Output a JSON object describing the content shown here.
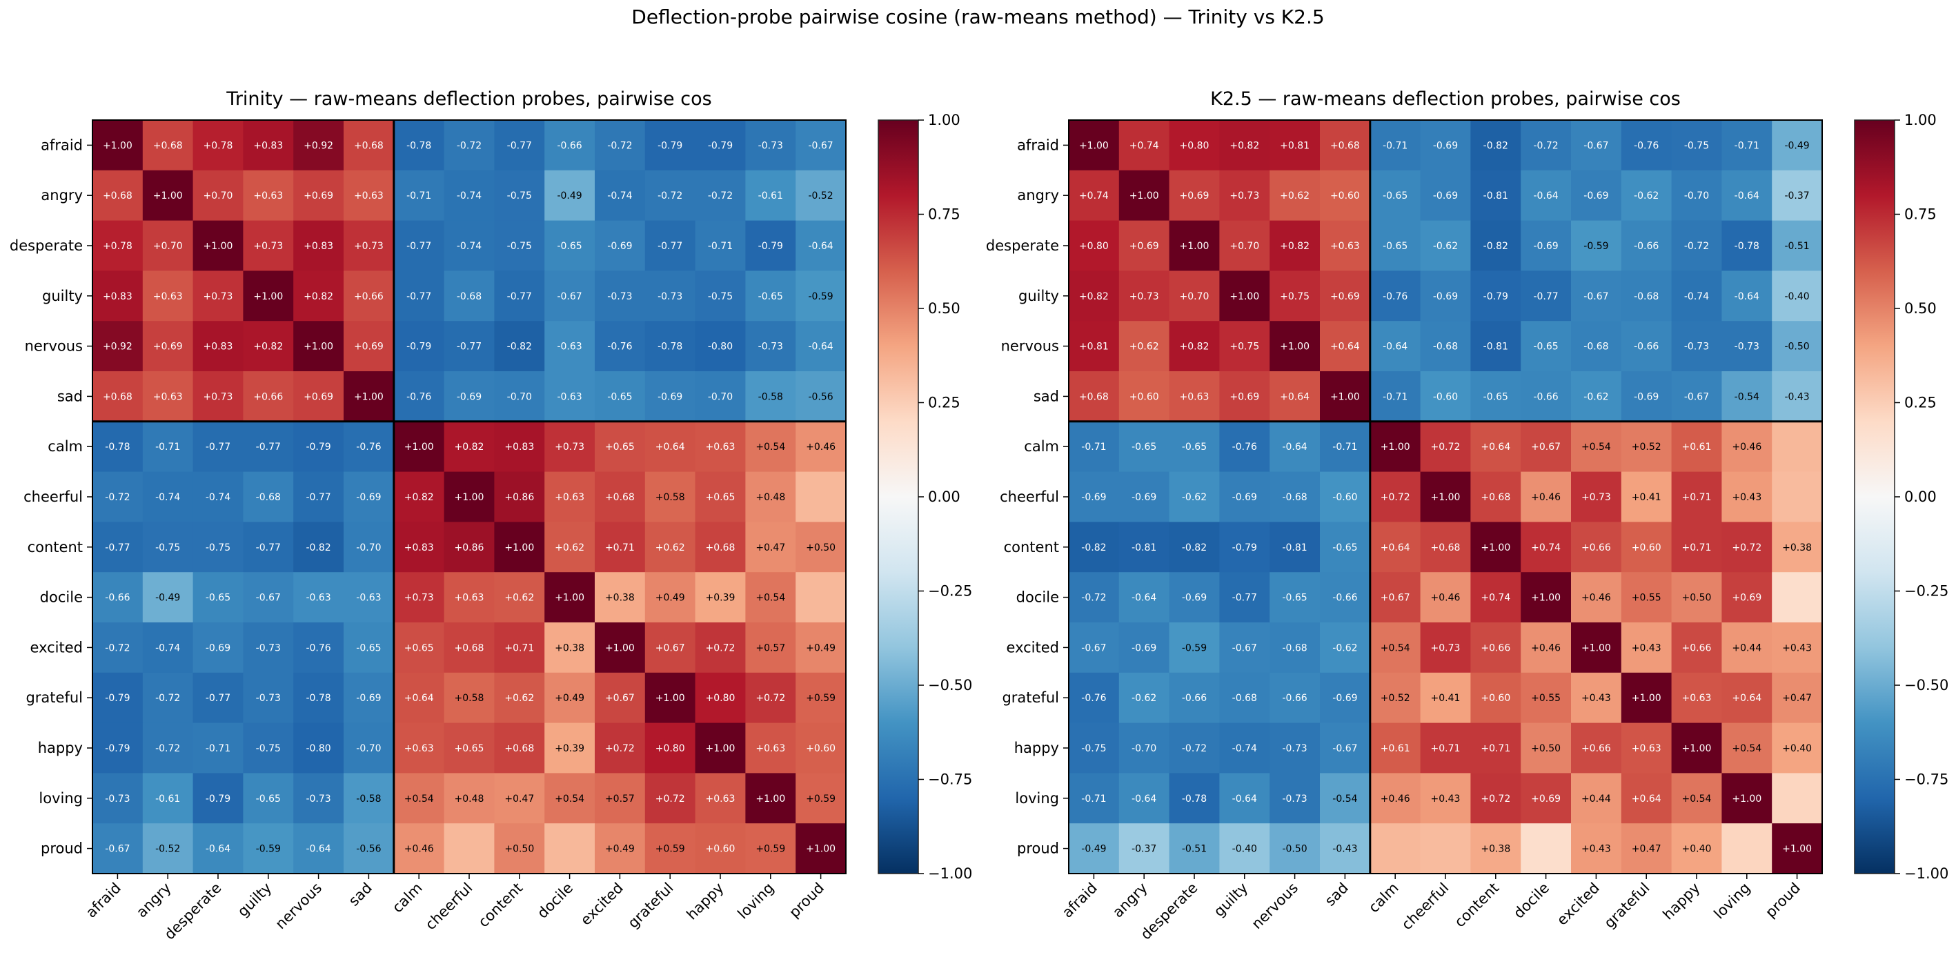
{
  "chart_data": {
    "type": "heatmap",
    "title": "Deflection-probe pairwise cosine (raw-means method) — Trinity vs K2.5",
    "colormap": "RdBu_r",
    "vmin": -1.0,
    "vmax": 1.0,
    "group_separator_after_index": 5,
    "labels": [
      "afraid",
      "angry",
      "desperate",
      "guilty",
      "nervous",
      "sad",
      "calm",
      "cheerful",
      "content",
      "docile",
      "excited",
      "grateful",
      "happy",
      "loving",
      "proud"
    ],
    "colorbar_ticks": [
      "1.00",
      "0.75",
      "0.50",
      "0.25",
      "0.00",
      "−0.25",
      "−0.50",
      "−0.75",
      "−1.00"
    ],
    "annotation_note": "Cells with |value| below ~0.37 are shown without a text label; their values are estimated from color.",
    "panels": [
      {
        "name": "Trinity",
        "title": "Trinity — raw-means deflection probes, pairwise cos",
        "values": [
          [
            1.0,
            0.68,
            0.78,
            0.83,
            0.92,
            0.68,
            -0.78,
            -0.72,
            -0.77,
            -0.66,
            -0.72,
            -0.79,
            -0.79,
            -0.73,
            -0.67
          ],
          [
            0.68,
            1.0,
            0.7,
            0.63,
            0.69,
            0.63,
            -0.71,
            -0.74,
            -0.75,
            -0.49,
            -0.74,
            -0.72,
            -0.72,
            -0.61,
            -0.52
          ],
          [
            0.78,
            0.7,
            1.0,
            0.73,
            0.83,
            0.73,
            -0.77,
            -0.74,
            -0.75,
            -0.65,
            -0.69,
            -0.77,
            -0.71,
            -0.79,
            -0.64
          ],
          [
            0.83,
            0.63,
            0.73,
            1.0,
            0.82,
            0.66,
            -0.77,
            -0.68,
            -0.77,
            -0.67,
            -0.73,
            -0.73,
            -0.75,
            -0.65,
            -0.59
          ],
          [
            0.92,
            0.69,
            0.83,
            0.82,
            1.0,
            0.69,
            -0.79,
            -0.77,
            -0.82,
            -0.63,
            -0.76,
            -0.78,
            -0.8,
            -0.73,
            -0.64
          ],
          [
            0.68,
            0.63,
            0.73,
            0.66,
            0.69,
            1.0,
            -0.76,
            -0.69,
            -0.7,
            -0.63,
            -0.65,
            -0.69,
            -0.7,
            -0.58,
            -0.56
          ],
          [
            -0.78,
            -0.71,
            -0.77,
            -0.77,
            -0.79,
            -0.76,
            1.0,
            0.82,
            0.83,
            0.73,
            0.65,
            0.64,
            0.63,
            0.54,
            0.46
          ],
          [
            -0.72,
            -0.74,
            -0.74,
            -0.68,
            -0.77,
            -0.69,
            0.82,
            1.0,
            0.86,
            0.63,
            0.68,
            0.58,
            0.65,
            0.48,
            0.33
          ],
          [
            -0.77,
            -0.75,
            -0.75,
            -0.77,
            -0.82,
            -0.7,
            0.83,
            0.86,
            1.0,
            0.62,
            0.71,
            0.62,
            0.68,
            0.47,
            0.5
          ],
          [
            -0.66,
            -0.49,
            -0.65,
            -0.67,
            -0.63,
            -0.63,
            0.73,
            0.63,
            0.62,
            1.0,
            0.38,
            0.49,
            0.39,
            0.54,
            0.33
          ],
          [
            -0.72,
            -0.74,
            -0.69,
            -0.73,
            -0.76,
            -0.65,
            0.65,
            0.68,
            0.71,
            0.38,
            1.0,
            0.67,
            0.72,
            0.57,
            0.49
          ],
          [
            -0.79,
            -0.72,
            -0.77,
            -0.73,
            -0.78,
            -0.69,
            0.64,
            0.58,
            0.62,
            0.49,
            0.67,
            1.0,
            0.8,
            0.72,
            0.59
          ],
          [
            -0.79,
            -0.72,
            -0.71,
            -0.75,
            -0.8,
            -0.7,
            0.63,
            0.65,
            0.68,
            0.39,
            0.72,
            0.8,
            1.0,
            0.63,
            0.6
          ],
          [
            -0.73,
            -0.61,
            -0.79,
            -0.65,
            -0.73,
            -0.58,
            0.54,
            0.48,
            0.47,
            0.54,
            0.57,
            0.72,
            0.63,
            1.0,
            0.59
          ],
          [
            -0.67,
            -0.52,
            -0.64,
            -0.59,
            -0.64,
            -0.56,
            0.46,
            0.33,
            0.5,
            0.33,
            0.49,
            0.59,
            0.6,
            0.59,
            1.0
          ]
        ]
      },
      {
        "name": "K2.5",
        "title": "K2.5 — raw-means deflection probes, pairwise cos",
        "values": [
          [
            1.0,
            0.74,
            0.8,
            0.82,
            0.81,
            0.68,
            -0.71,
            -0.69,
            -0.82,
            -0.72,
            -0.67,
            -0.76,
            -0.75,
            -0.71,
            -0.49
          ],
          [
            0.74,
            1.0,
            0.69,
            0.73,
            0.62,
            0.6,
            -0.65,
            -0.69,
            -0.81,
            -0.64,
            -0.69,
            -0.62,
            -0.7,
            -0.64,
            -0.37
          ],
          [
            0.8,
            0.69,
            1.0,
            0.7,
            0.82,
            0.63,
            -0.65,
            -0.62,
            -0.82,
            -0.69,
            -0.59,
            -0.66,
            -0.72,
            -0.78,
            -0.51
          ],
          [
            0.82,
            0.73,
            0.7,
            1.0,
            0.75,
            0.69,
            -0.76,
            -0.69,
            -0.79,
            -0.77,
            -0.67,
            -0.68,
            -0.74,
            -0.64,
            -0.4
          ],
          [
            0.81,
            0.62,
            0.82,
            0.75,
            1.0,
            0.64,
            -0.64,
            -0.68,
            -0.81,
            -0.65,
            -0.68,
            -0.66,
            -0.73,
            -0.73,
            -0.5
          ],
          [
            0.68,
            0.6,
            0.63,
            0.69,
            0.64,
            1.0,
            -0.71,
            -0.6,
            -0.65,
            -0.66,
            -0.62,
            -0.69,
            -0.67,
            -0.54,
            -0.43
          ],
          [
            -0.71,
            -0.65,
            -0.65,
            -0.76,
            -0.64,
            -0.71,
            1.0,
            0.72,
            0.64,
            0.67,
            0.54,
            0.52,
            0.61,
            0.46,
            0.33
          ],
          [
            -0.69,
            -0.69,
            -0.62,
            -0.69,
            -0.68,
            -0.6,
            0.72,
            1.0,
            0.68,
            0.46,
            0.73,
            0.41,
            0.71,
            0.43,
            0.32
          ],
          [
            -0.82,
            -0.81,
            -0.82,
            -0.79,
            -0.81,
            -0.65,
            0.64,
            0.68,
            1.0,
            0.74,
            0.66,
            0.6,
            0.71,
            0.72,
            0.38
          ],
          [
            -0.72,
            -0.64,
            -0.69,
            -0.77,
            -0.65,
            -0.66,
            0.67,
            0.46,
            0.74,
            1.0,
            0.46,
            0.55,
            0.5,
            0.69,
            0.18
          ],
          [
            -0.67,
            -0.69,
            -0.59,
            -0.67,
            -0.68,
            -0.62,
            0.54,
            0.73,
            0.66,
            0.46,
            1.0,
            0.43,
            0.66,
            0.44,
            0.43
          ],
          [
            -0.76,
            -0.62,
            -0.66,
            -0.68,
            -0.66,
            -0.69,
            0.52,
            0.41,
            0.6,
            0.55,
            0.43,
            1.0,
            0.63,
            0.64,
            0.47
          ],
          [
            -0.75,
            -0.7,
            -0.72,
            -0.74,
            -0.73,
            -0.67,
            0.61,
            0.71,
            0.71,
            0.5,
            0.66,
            0.63,
            1.0,
            0.54,
            0.4
          ],
          [
            -0.71,
            -0.64,
            -0.78,
            -0.64,
            -0.73,
            -0.54,
            0.46,
            0.43,
            0.72,
            0.69,
            0.44,
            0.64,
            0.54,
            1.0,
            0.22
          ],
          [
            -0.49,
            -0.37,
            -0.51,
            -0.4,
            -0.5,
            -0.43,
            0.33,
            0.32,
            0.38,
            0.18,
            0.43,
            0.47,
            0.4,
            0.22,
            1.0
          ]
        ]
      }
    ]
  }
}
